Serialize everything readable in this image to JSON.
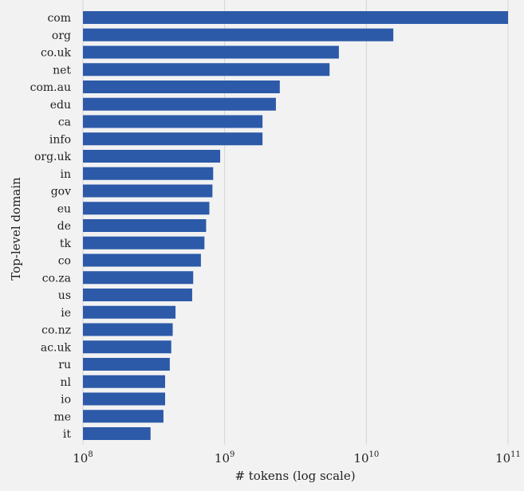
{
  "colors": {
    "background": "#f2f2f3",
    "bar": "#2c5aa8",
    "grid": "#d4d4d8",
    "text": "#222222"
  },
  "chart_data": {
    "type": "bar",
    "orientation": "horizontal",
    "xscale": "log",
    "xlim": [
      100000000,
      100000000000
    ],
    "xticks": [
      {
        "value": 100000000,
        "base": "10",
        "exp": "8"
      },
      {
        "value": 1000000000,
        "base": "10",
        "exp": "9"
      },
      {
        "value": 10000000000,
        "base": "10",
        "exp": "10"
      },
      {
        "value": 100000000000,
        "base": "10",
        "exp": "11"
      }
    ],
    "xlabel": "# tokens (log scale)",
    "ylabel": "Top-level domain",
    "grid": "vertical",
    "categories": [
      "com",
      "org",
      "co.uk",
      "net",
      "com.au",
      "edu",
      "ca",
      "info",
      "org.uk",
      "in",
      "gov",
      "eu",
      "de",
      "tk",
      "co",
      "co.za",
      "us",
      "ie",
      "co.nz",
      "ac.uk",
      "ru",
      "nl",
      "io",
      "me",
      "it"
    ],
    "values": [
      100000000000,
      15500000000,
      6400000000,
      5500000000,
      2450000000,
      2300000000,
      1850000000,
      1850000000,
      930000000,
      830000000,
      820000000,
      780000000,
      740000000,
      720000000,
      680000000,
      600000000,
      590000000,
      450000000,
      430000000,
      420000000,
      410000000,
      380000000,
      380000000,
      370000000,
      300000000
    ]
  }
}
